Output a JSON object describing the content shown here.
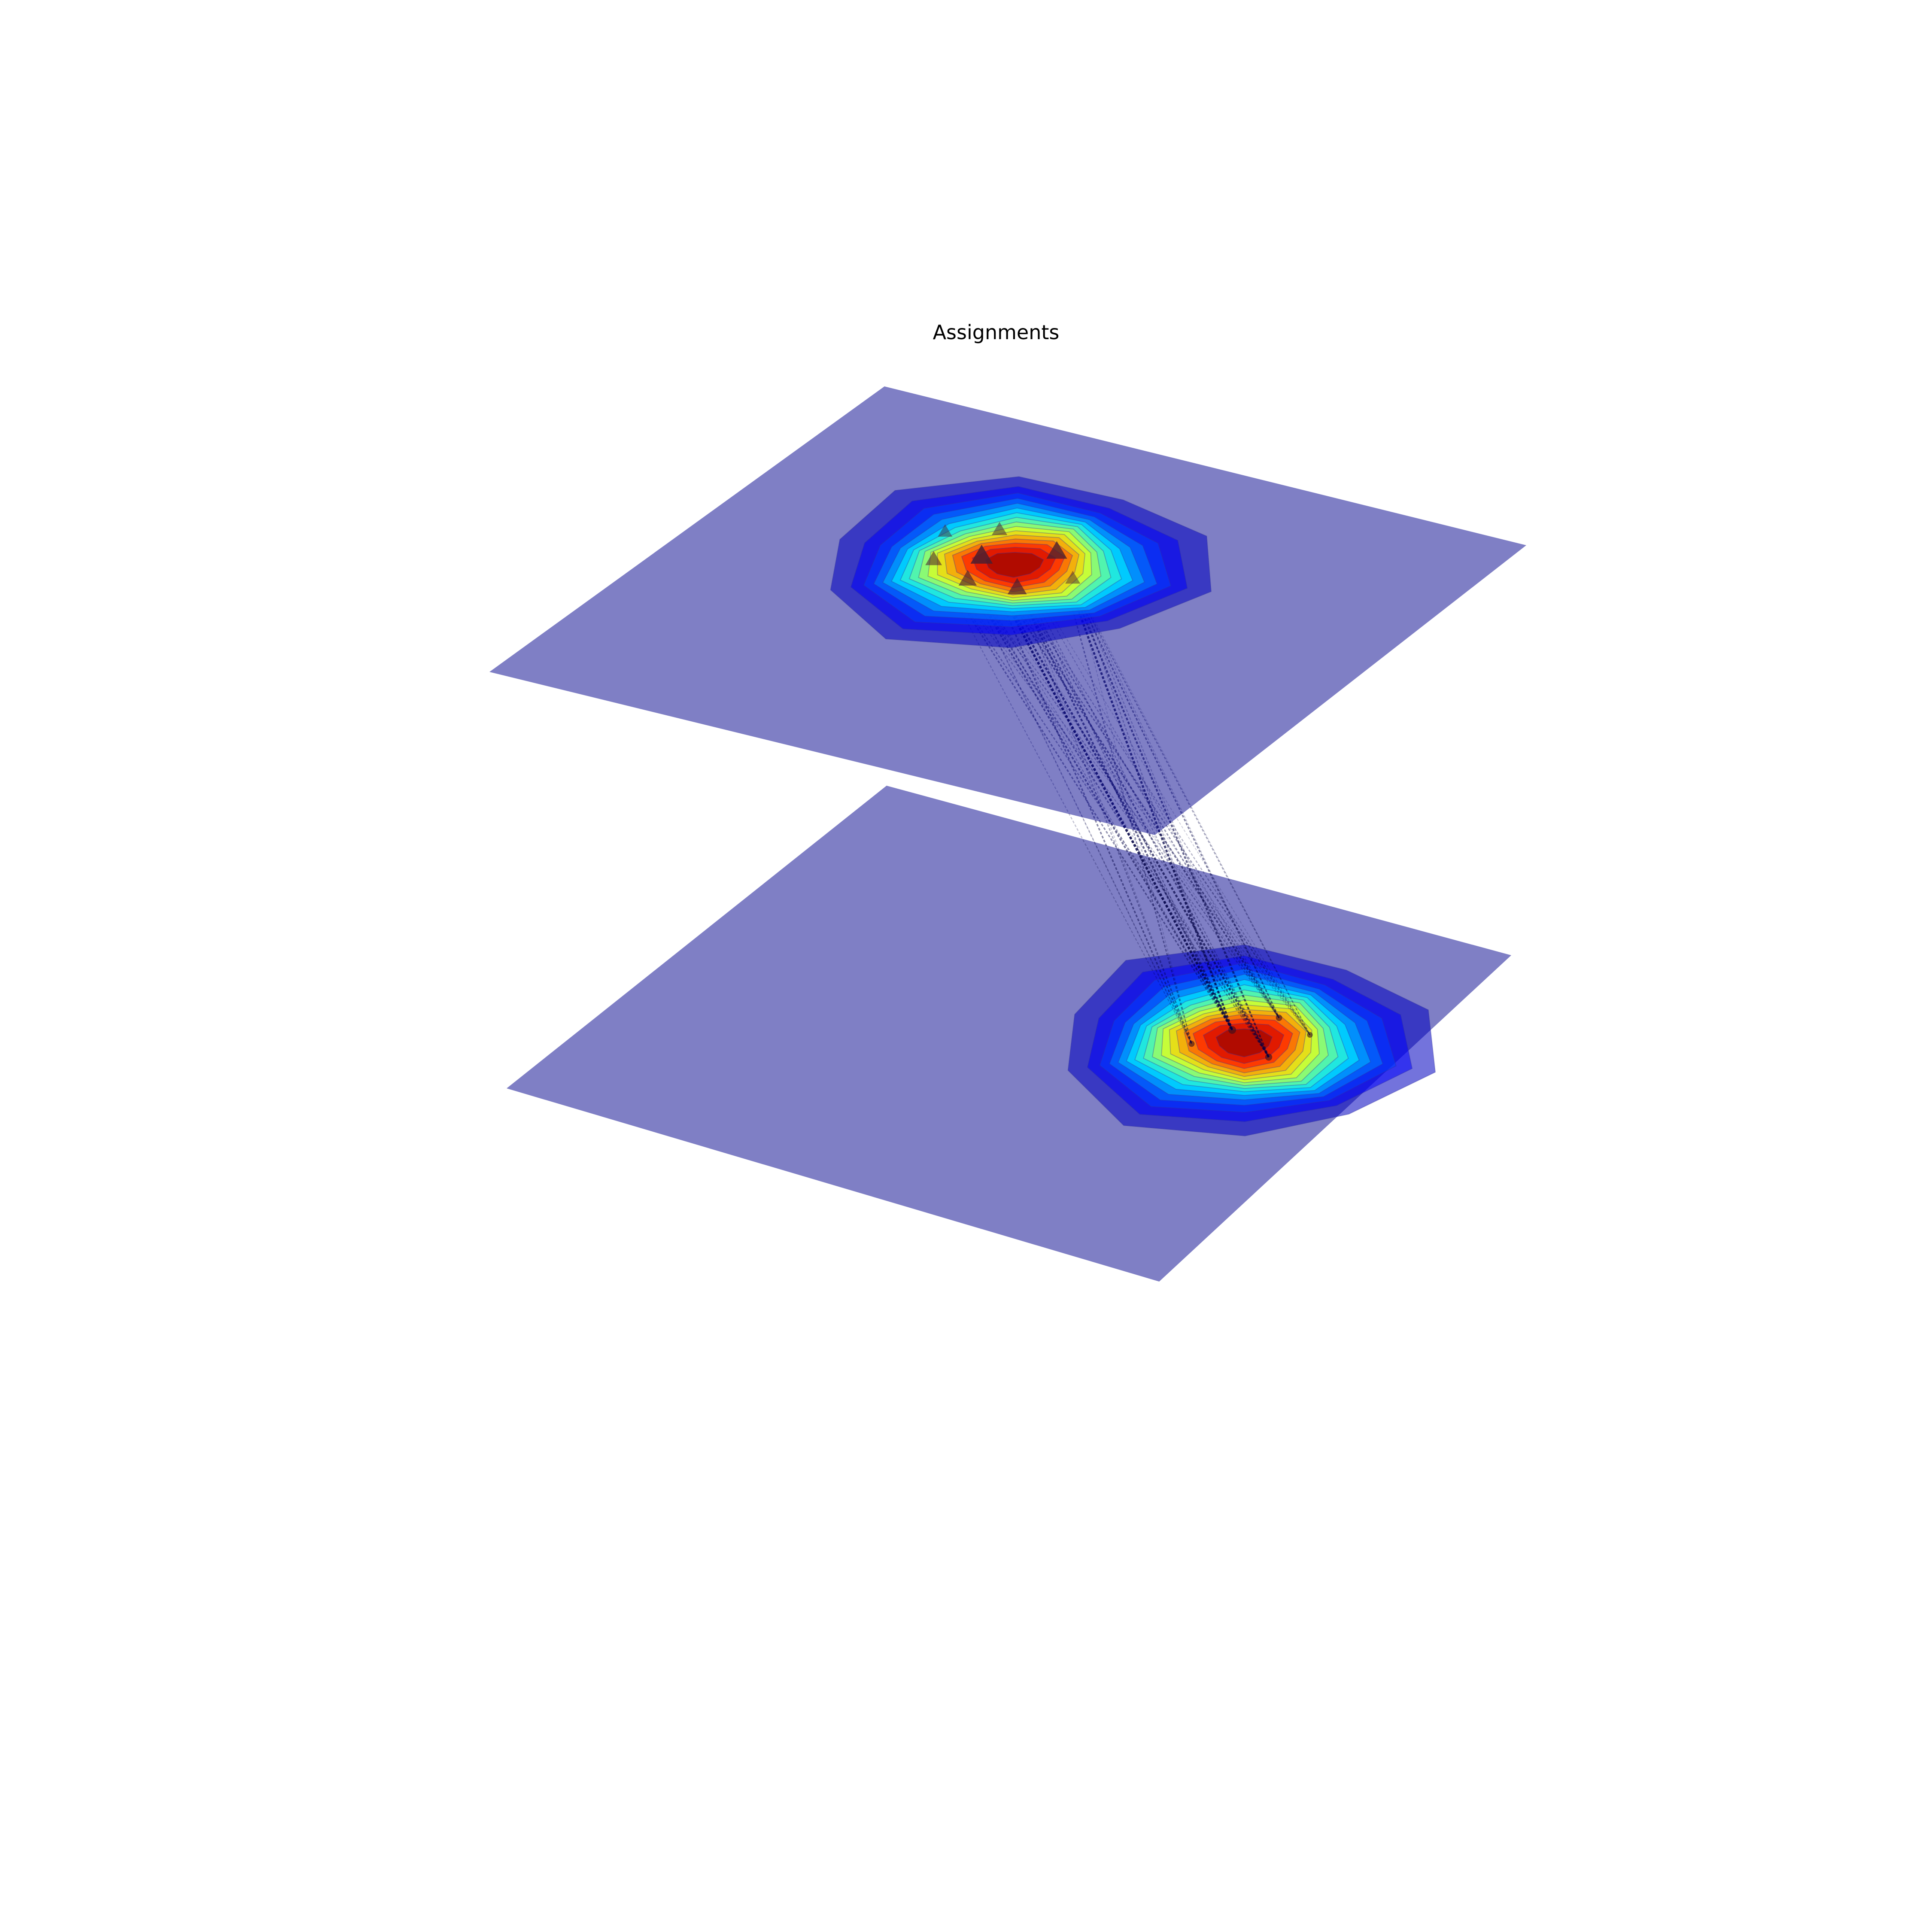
{
  "chart_data": {
    "type": "heatmap",
    "title": "Assignments",
    "xlabel": "",
    "ylabel": "",
    "grid": false,
    "legend": "none",
    "colormap": "jet",
    "plane_color": "#00008b",
    "link_color": "#000044",
    "x_range": [
      0,
      1
    ],
    "y_range": [
      0,
      1
    ],
    "layers": [
      {
        "id": "top",
        "z": 1,
        "peak": {
          "x": 0.43,
          "y": 0.62,
          "value": 1.0
        },
        "spread": 0.14,
        "sources": [
          {
            "x": 0.38,
            "y": 0.62,
            "mass": 1.0
          },
          {
            "x": 0.46,
            "y": 0.68,
            "mass": 0.85
          },
          {
            "x": 0.47,
            "y": 0.56,
            "mass": 0.7
          },
          {
            "x": 0.4,
            "y": 0.55,
            "mass": 0.6
          },
          {
            "x": 0.33,
            "y": 0.58,
            "mass": 0.45
          },
          {
            "x": 0.36,
            "y": 0.7,
            "mass": 0.35
          },
          {
            "x": 0.52,
            "y": 0.62,
            "mass": 0.3
          },
          {
            "x": 0.3,
            "y": 0.66,
            "mass": 0.25
          }
        ]
      },
      {
        "id": "bottom",
        "z": 0,
        "peak": {
          "x": 0.79,
          "y": 0.62,
          "value": 1.0
        },
        "spread": 0.14,
        "targets": [
          {
            "x": 0.76,
            "y": 0.64,
            "mass": 1.0
          },
          {
            "x": 0.84,
            "y": 0.6,
            "mass": 0.8
          },
          {
            "x": 0.8,
            "y": 0.7,
            "mass": 0.6
          },
          {
            "x": 0.73,
            "y": 0.58,
            "mass": 0.5
          },
          {
            "x": 0.86,
            "y": 0.68,
            "mass": 0.4
          }
        ]
      }
    ]
  }
}
